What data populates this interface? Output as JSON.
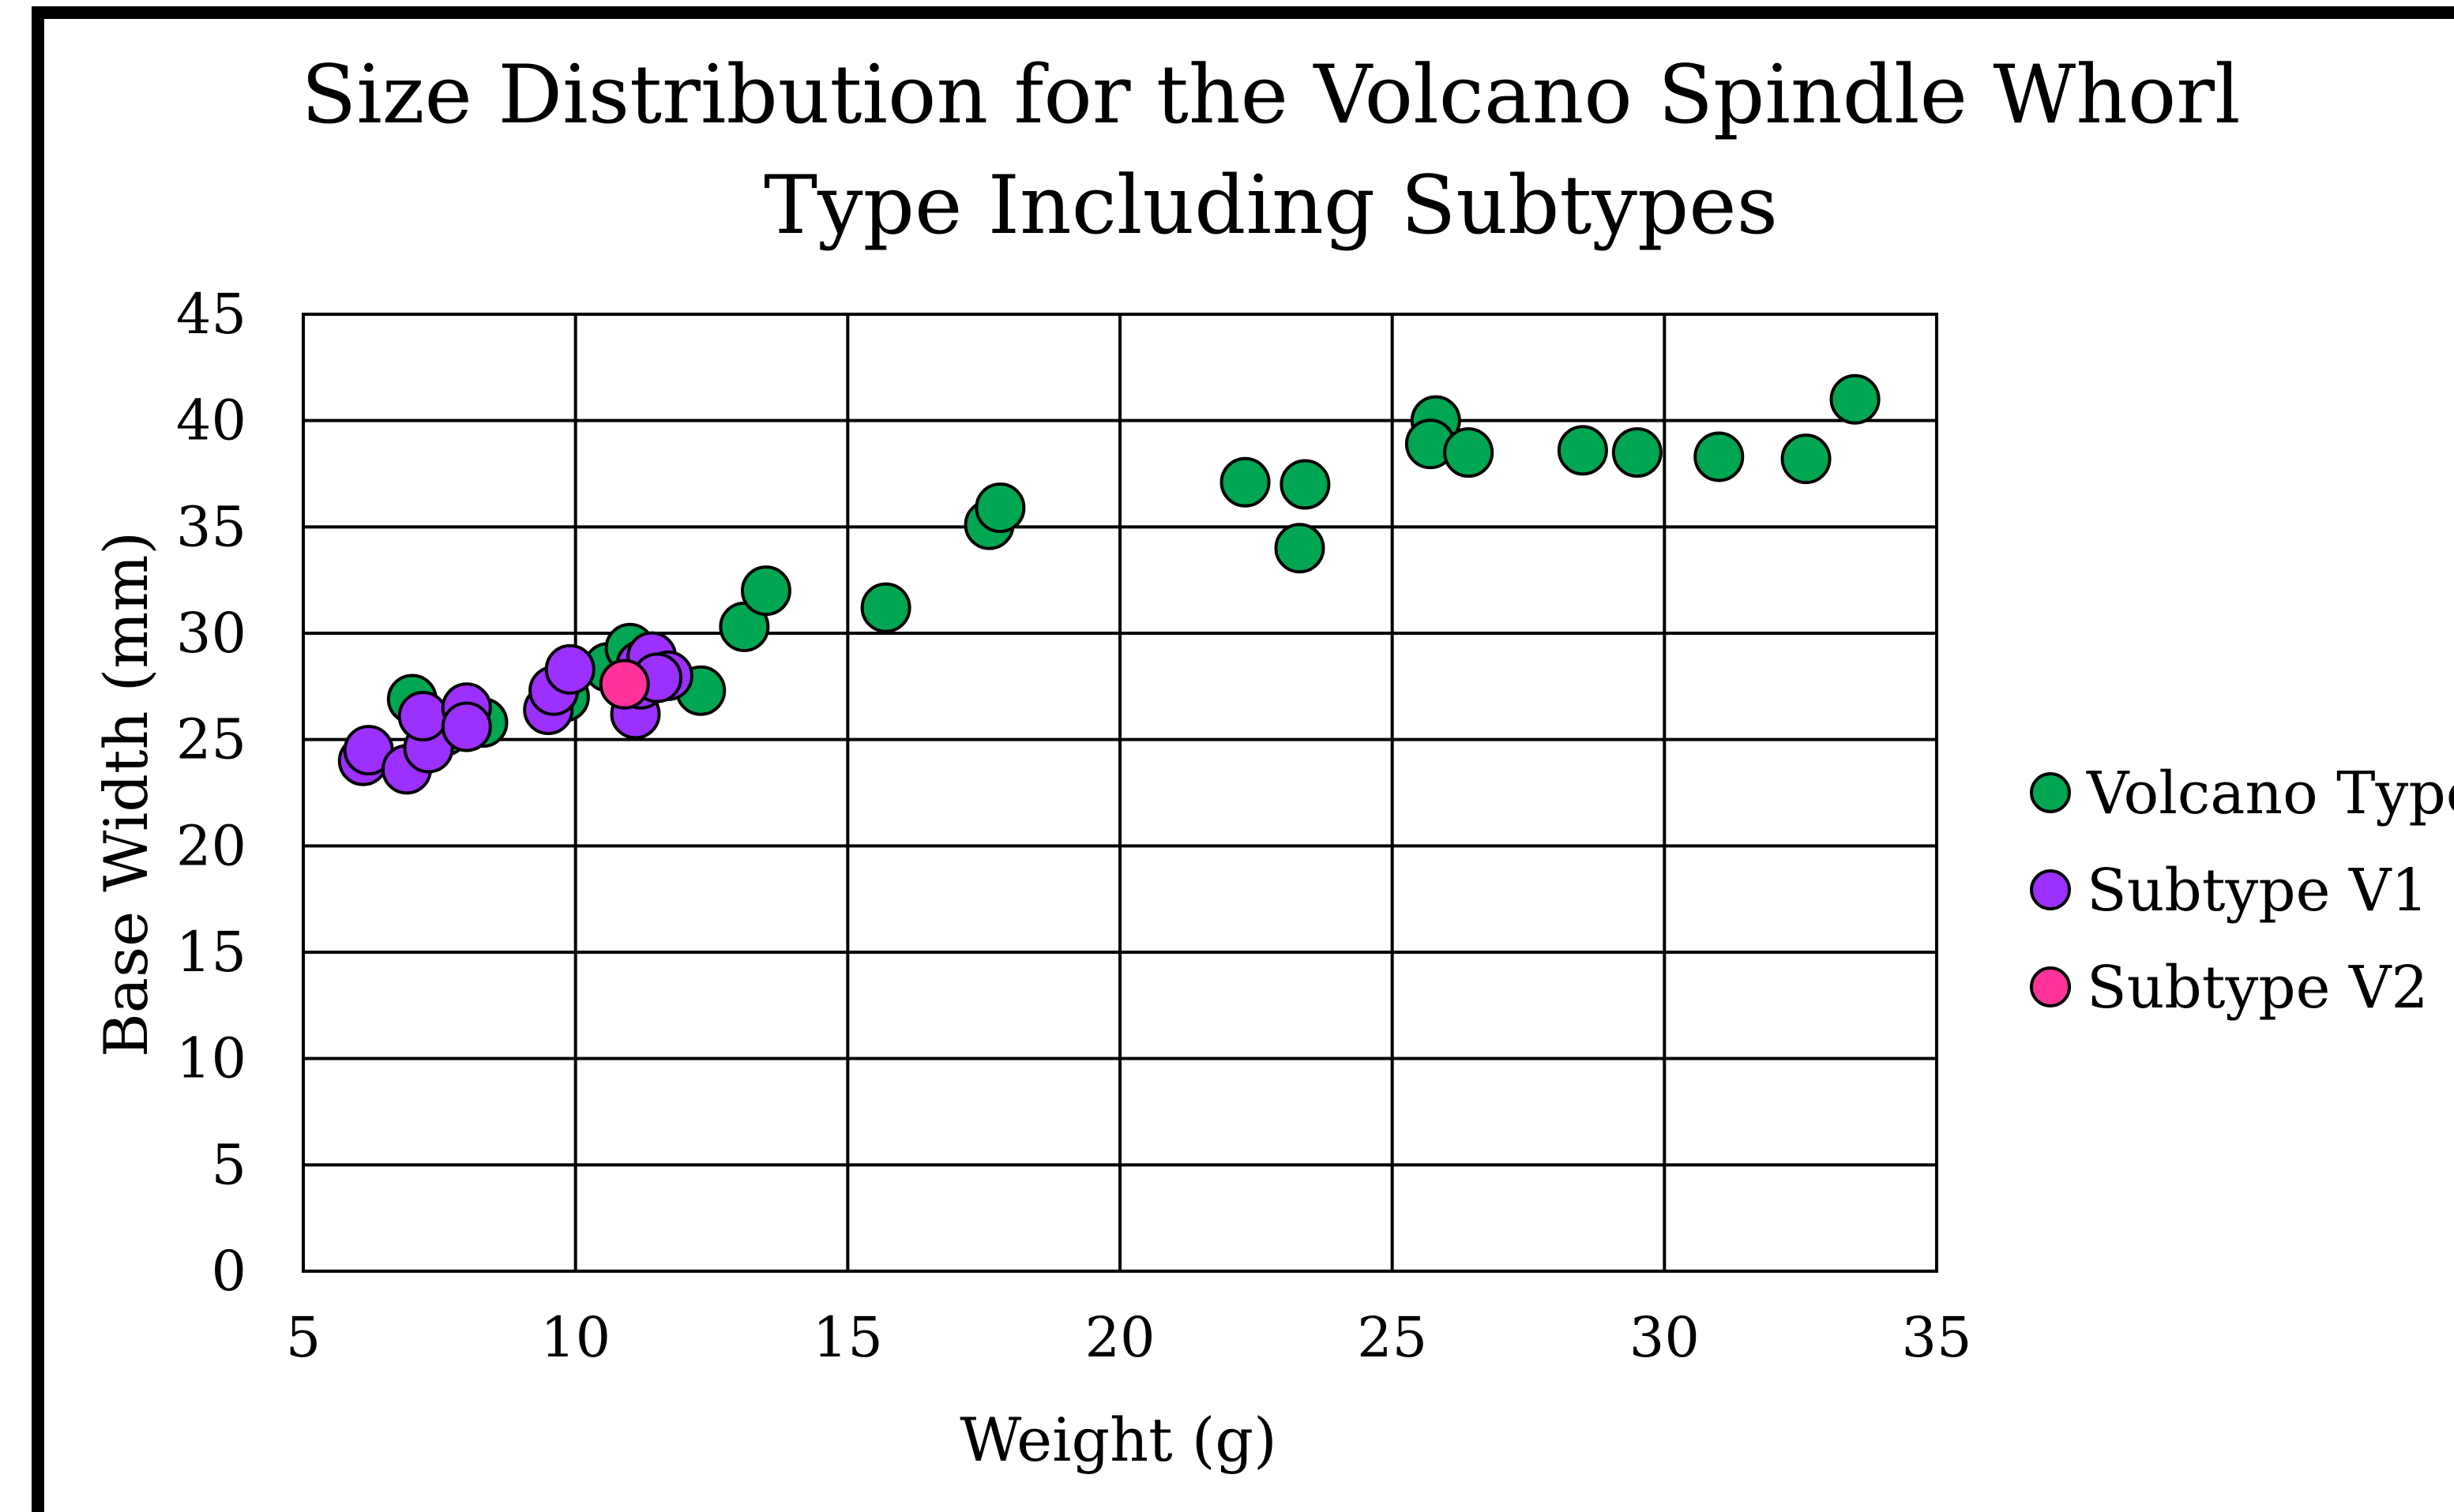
{
  "chart_data": {
    "type": "scatter",
    "title_line1": "Size Distribution for the Volcano Spindle Whorl",
    "title_line2": "Type Including Subtypes",
    "xlabel": "Weight (g)",
    "ylabel": "Base Width (mm)",
    "xlim": [
      5,
      35
    ],
    "ylim": [
      0,
      45
    ],
    "x_ticks": [
      "5",
      "10",
      "15",
      "20",
      "25",
      "30",
      "35"
    ],
    "y_ticks": [
      "0",
      "5",
      "10",
      "15",
      "20",
      "25",
      "30",
      "35",
      "40",
      "45"
    ],
    "grid": true,
    "legend_position": "right",
    "series": [
      {
        "name": "Volcano Type",
        "color": "#00A651",
        "points": [
          {
            "x": 7.0,
            "y": 26.9
          },
          {
            "x": 7.6,
            "y": 25.4
          },
          {
            "x": 8.3,
            "y": 25.8
          },
          {
            "x": 9.8,
            "y": 27.0
          },
          {
            "x": 10.6,
            "y": 28.4
          },
          {
            "x": 11.0,
            "y": 29.3
          },
          {
            "x": 11.5,
            "y": 28.2
          },
          {
            "x": 12.3,
            "y": 27.3
          },
          {
            "x": 13.1,
            "y": 30.3
          },
          {
            "x": 13.5,
            "y": 32.0
          },
          {
            "x": 15.7,
            "y": 31.2
          },
          {
            "x": 17.6,
            "y": 35.1
          },
          {
            "x": 17.8,
            "y": 35.9
          },
          {
            "x": 22.3,
            "y": 37.1
          },
          {
            "x": 23.3,
            "y": 34.0
          },
          {
            "x": 23.4,
            "y": 37.0
          },
          {
            "x": 25.8,
            "y": 40.0
          },
          {
            "x": 25.7,
            "y": 38.9
          },
          {
            "x": 26.4,
            "y": 38.5
          },
          {
            "x": 28.5,
            "y": 38.6
          },
          {
            "x": 29.5,
            "y": 38.5
          },
          {
            "x": 31.0,
            "y": 38.3
          },
          {
            "x": 32.6,
            "y": 38.2
          },
          {
            "x": 33.5,
            "y": 41.0
          }
        ]
      },
      {
        "name": "Subtype V1",
        "color": "#9B30FF",
        "points": [
          {
            "x": 6.1,
            "y": 24.0
          },
          {
            "x": 6.2,
            "y": 24.5
          },
          {
            "x": 6.9,
            "y": 23.6
          },
          {
            "x": 7.3,
            "y": 24.6
          },
          {
            "x": 7.2,
            "y": 26.1
          },
          {
            "x": 8.0,
            "y": 26.5
          },
          {
            "x": 8.0,
            "y": 25.6
          },
          {
            "x": 9.5,
            "y": 26.4
          },
          {
            "x": 9.6,
            "y": 27.3
          },
          {
            "x": 9.9,
            "y": 28.3
          },
          {
            "x": 11.1,
            "y": 26.2
          },
          {
            "x": 11.2,
            "y": 27.6
          },
          {
            "x": 11.2,
            "y": 28.5
          },
          {
            "x": 11.4,
            "y": 28.9
          },
          {
            "x": 11.7,
            "y": 28.0
          },
          {
            "x": 11.5,
            "y": 27.9
          }
        ]
      },
      {
        "name": "Subtype V2",
        "color": "#FF3399",
        "points": [
          {
            "x": 10.9,
            "y": 27.6
          }
        ]
      }
    ]
  }
}
